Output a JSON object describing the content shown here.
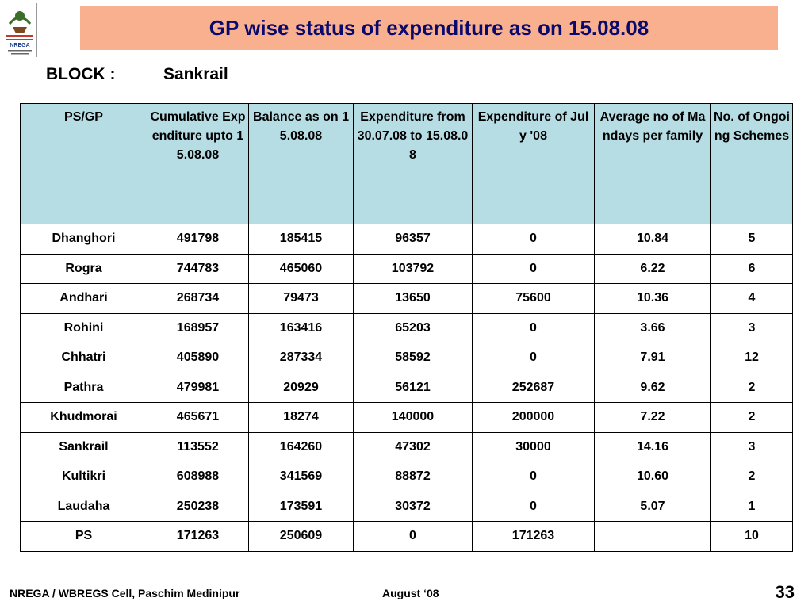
{
  "slide": {
    "title": "GP wise status of expenditure as on 15.08.08",
    "block_label": "BLOCK :",
    "block_value": "Sankrail",
    "footer_left": "NREGA / WBREGS Cell, Paschim Medinipur",
    "footer_mid": "August ‘08",
    "page_number": "33"
  },
  "logo": {
    "text": "NREGA",
    "icon": "nrega-emblem-icon"
  },
  "colors": {
    "title_bg": "#f9b08f",
    "title_text": "#0a0a6e",
    "header_bg": "#b7dde4"
  },
  "table": {
    "headers": [
      "PS/GP",
      "Cumulative Expenditure upto 15.08.08",
      "Balance as on 15.08.08",
      "Expenditure from 30.07.08 to 15.08.08",
      "Expenditure of  July '08",
      "Average no of Mandays per family",
      "No. of Ongoing Schemes"
    ],
    "rows": [
      [
        "Dhanghori",
        "491798",
        "185415",
        "96357",
        "0",
        "10.84",
        "5"
      ],
      [
        "Rogra",
        "744783",
        "465060",
        "103792",
        "0",
        "6.22",
        "6"
      ],
      [
        "Andhari",
        "268734",
        "79473",
        "13650",
        "75600",
        "10.36",
        "4"
      ],
      [
        "Rohini",
        "168957",
        "163416",
        "65203",
        "0",
        "3.66",
        "3"
      ],
      [
        "Chhatri",
        "405890",
        "287334",
        "58592",
        "0",
        "7.91",
        "12"
      ],
      [
        "Pathra",
        "479981",
        "20929",
        "56121",
        "252687",
        "9.62",
        "2"
      ],
      [
        "Khudmorai",
        "465671",
        "18274",
        "140000",
        "200000",
        "7.22",
        "2"
      ],
      [
        "Sankrail",
        "113552",
        "164260",
        "47302",
        "30000",
        "14.16",
        "3"
      ],
      [
        "Kultikri",
        "608988",
        "341569",
        "88872",
        "0",
        "10.60",
        "2"
      ],
      [
        "Laudaha",
        "250238",
        "173591",
        "30372",
        "0",
        "5.07",
        "1"
      ],
      [
        "PS",
        "171263",
        "250609",
        "0",
        "171263",
        "",
        "10"
      ]
    ]
  }
}
